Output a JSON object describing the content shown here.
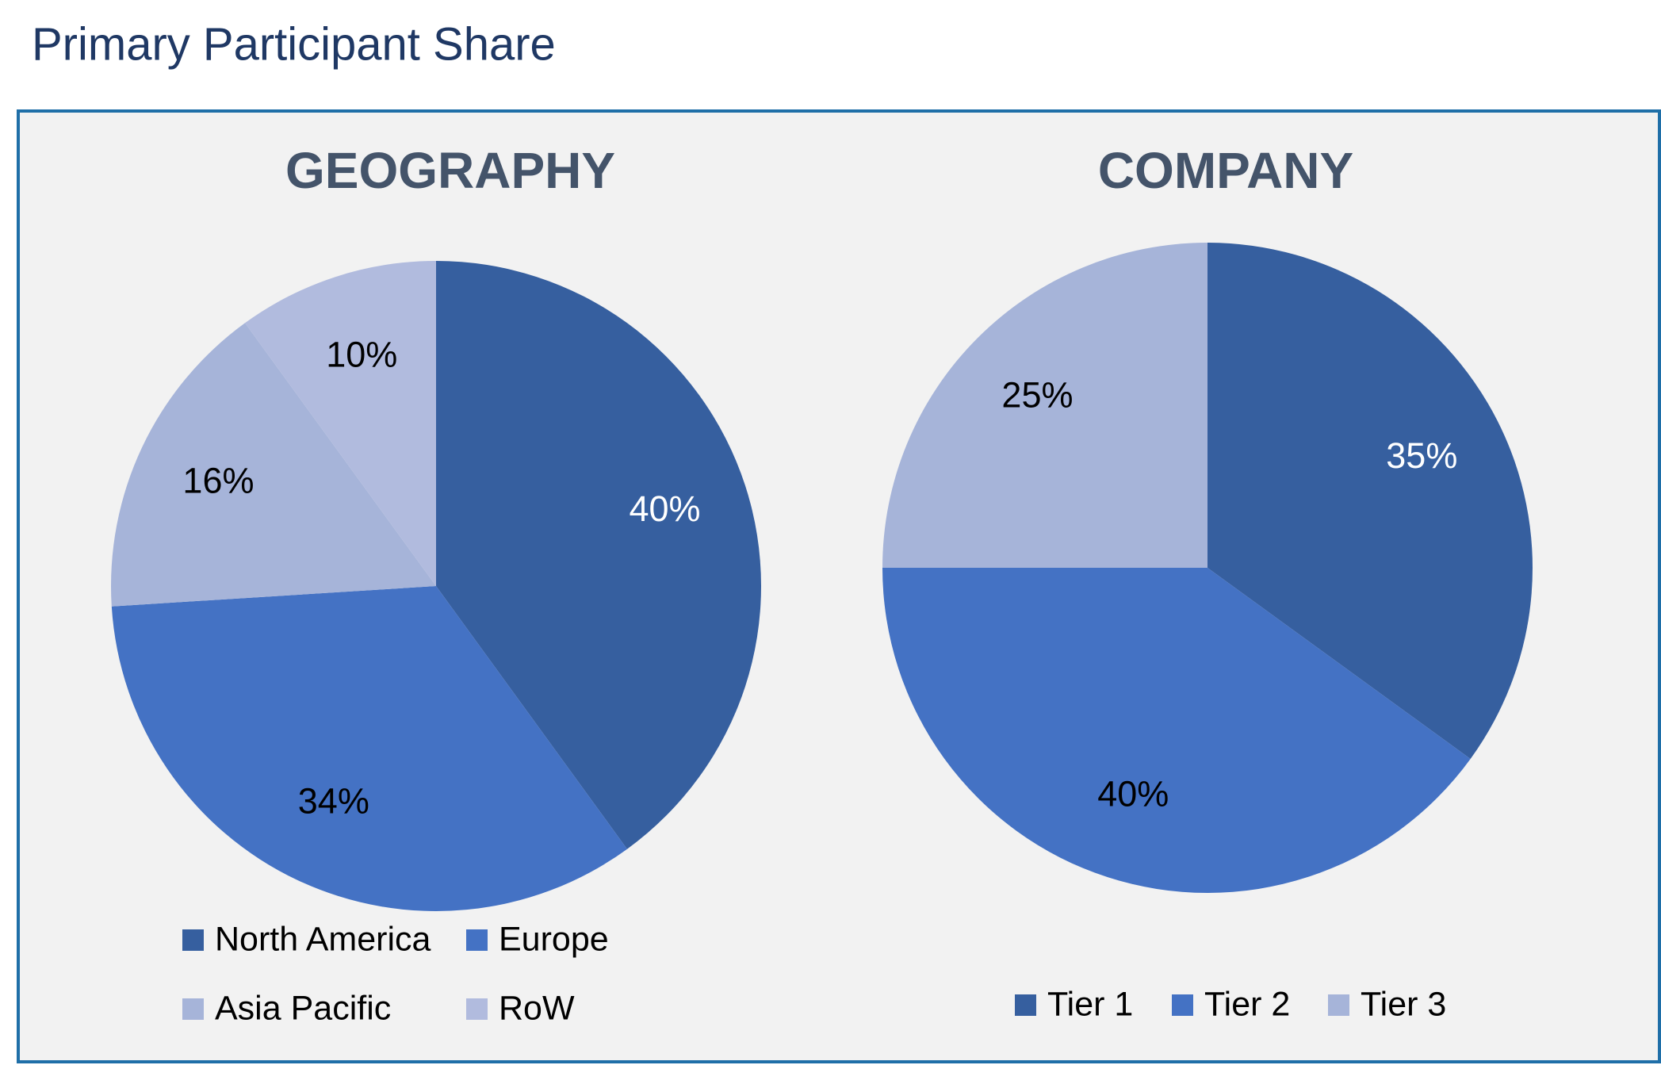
{
  "title": "Primary Participant Share",
  "chart_data": [
    {
      "type": "pie",
      "title": "GEOGRAPHY",
      "categories": [
        "North America",
        "Europe",
        "Asia Pacific",
        "RoW"
      ],
      "values": [
        40,
        34,
        16,
        10
      ],
      "value_labels": [
        "40%",
        "34%",
        "16%",
        "10%"
      ],
      "colors": [
        "#365f9f",
        "#4472c4",
        "#a6b4d9",
        "#b1bbde"
      ]
    },
    {
      "type": "pie",
      "title": "COMPANY",
      "categories": [
        "Tier 1",
        "Tier 2",
        "Tier 3"
      ],
      "values": [
        35,
        40,
        25
      ],
      "value_labels": [
        "35%",
        "40%",
        "25%"
      ],
      "colors": [
        "#365f9f",
        "#4472c4",
        "#a6b4d9"
      ]
    }
  ]
}
